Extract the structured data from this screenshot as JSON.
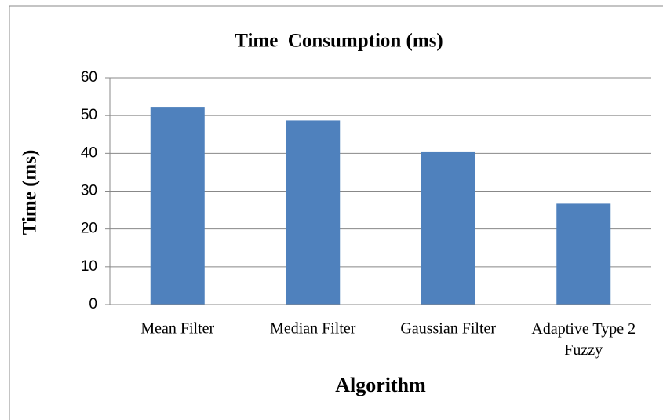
{
  "chart_data": {
    "type": "bar",
    "title": "Time  Consumption (ms)",
    "x_label": "Algorithm",
    "y_label": "Time (ms)",
    "categories": [
      "Mean Filter",
      "Median Filter",
      "Gaussian Filter",
      "Adaptive Type 2 Fuzzy"
    ],
    "values": [
      52.3,
      48.7,
      40.5,
      26.7
    ],
    "color": "#4f81bd",
    "ylim": [
      0,
      60
    ],
    "yticks": [
      0,
      10,
      20,
      30,
      40,
      50,
      60
    ],
    "grid": true
  }
}
